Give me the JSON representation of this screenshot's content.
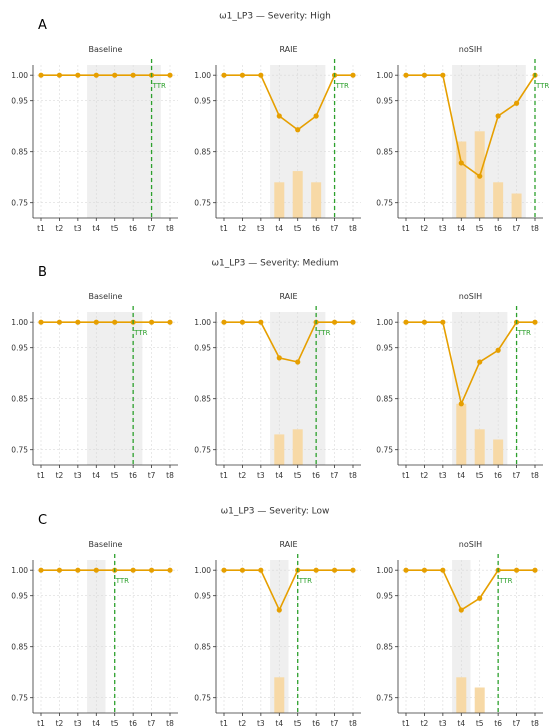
{
  "colors": {
    "line": "#E69F00",
    "bar": "#F7D9A6",
    "shade": "#EFEFEF",
    "ttr": "#2CA02C",
    "grid": "#D9D9D9",
    "axis": "#333333"
  },
  "chart_data": [
    {
      "type": "line",
      "row_letter": "A",
      "title": "ω1_LP3 — Severity: High",
      "categories": [
        "t1",
        "t2",
        "t3",
        "t4",
        "t5",
        "t6",
        "t7",
        "t8"
      ],
      "ylim": [
        0.72,
        1.02
      ],
      "yticks": [
        "0.75",
        "0.85",
        "0.95",
        "1.00"
      ],
      "panels": [
        {
          "title": "Baseline",
          "values": [
            1,
            1,
            1,
            1,
            1,
            1,
            1,
            1
          ],
          "bars": [
            null,
            null,
            null,
            null,
            null,
            null,
            null,
            null
          ],
          "shade": [
            2.5,
            6.5
          ],
          "ttr_index": 6,
          "ttr_label": "TTR"
        },
        {
          "title": "RAIE",
          "values": [
            1,
            1,
            1,
            0.92,
            0.893,
            0.92,
            1,
            1
          ],
          "bars": [
            null,
            null,
            null,
            0.79,
            0.812,
            0.79,
            null,
            null
          ],
          "shade": [
            2.5,
            5.5
          ],
          "ttr_index": 6,
          "ttr_label": "TTR"
        },
        {
          "title": "noSIH",
          "values": [
            1,
            1,
            1,
            0.828,
            0.802,
            0.92,
            0.945,
            1
          ],
          "bars": [
            null,
            null,
            null,
            0.87,
            0.89,
            0.79,
            0.768,
            null
          ],
          "shade": [
            2.5,
            6.5
          ],
          "ttr_index": 7,
          "ttr_label": "TTR"
        }
      ]
    },
    {
      "type": "line",
      "row_letter": "B",
      "title": "ω1_LP3 — Severity: Medium",
      "categories": [
        "t1",
        "t2",
        "t3",
        "t4",
        "t5",
        "t6",
        "t7",
        "t8"
      ],
      "ylim": [
        0.72,
        1.02
      ],
      "yticks": [
        "0.75",
        "0.85",
        "0.95",
        "1.00"
      ],
      "panels": [
        {
          "title": "Baseline",
          "values": [
            1,
            1,
            1,
            1,
            1,
            1,
            1,
            1
          ],
          "bars": [
            null,
            null,
            null,
            null,
            null,
            null,
            null,
            null
          ],
          "shade": [
            2.5,
            5.5
          ],
          "ttr_index": 5,
          "ttr_label": "TTR"
        },
        {
          "title": "RAIE",
          "values": [
            1,
            1,
            1,
            0.93,
            0.922,
            1,
            1,
            1
          ],
          "bars": [
            null,
            null,
            null,
            0.78,
            0.79,
            null,
            null,
            null
          ],
          "shade": [
            2.5,
            5.5
          ],
          "ttr_index": 5,
          "ttr_label": "TTR"
        },
        {
          "title": "noSIH",
          "values": [
            1,
            1,
            1,
            0.84,
            0.922,
            0.945,
            1,
            1
          ],
          "bars": [
            null,
            null,
            null,
            0.84,
            0.79,
            0.77,
            null,
            null
          ],
          "shade": [
            2.5,
            5.5
          ],
          "ttr_index": 6,
          "ttr_label": "TTR"
        }
      ]
    },
    {
      "type": "line",
      "row_letter": "C",
      "title": "ω1_LP3 — Severity: Low",
      "categories": [
        "t1",
        "t2",
        "t3",
        "t4",
        "t5",
        "t6",
        "t7",
        "t8"
      ],
      "ylim": [
        0.72,
        1.02
      ],
      "yticks": [
        "0.75",
        "0.85",
        "0.95",
        "1.00"
      ],
      "panels": [
        {
          "title": "Baseline",
          "values": [
            1,
            1,
            1,
            1,
            1,
            1,
            1,
            1
          ],
          "bars": [
            null,
            null,
            null,
            null,
            null,
            null,
            null,
            null
          ],
          "shade": [
            2.5,
            3.5
          ],
          "ttr_index": 4,
          "ttr_label": "TTR"
        },
        {
          "title": "RAIE",
          "values": [
            1,
            1,
            1,
            0.922,
            1,
            1,
            1,
            1
          ],
          "bars": [
            null,
            null,
            null,
            0.79,
            null,
            null,
            null,
            null
          ],
          "shade": [
            2.5,
            3.5
          ],
          "ttr_index": 4,
          "ttr_label": "TTR"
        },
        {
          "title": "noSIH",
          "values": [
            1,
            1,
            1,
            0.922,
            0.945,
            1,
            1,
            1
          ],
          "bars": [
            null,
            null,
            null,
            0.79,
            0.77,
            null,
            null,
            null
          ],
          "shade": [
            2.5,
            3.5
          ],
          "ttr_index": 5,
          "ttr_label": "TTR"
        }
      ]
    }
  ]
}
